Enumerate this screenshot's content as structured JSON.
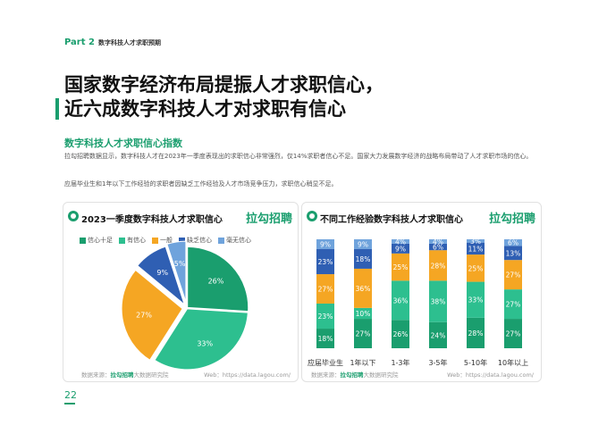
{
  "header": {
    "part": "Part 2",
    "section": "数字科技人才求职预期"
  },
  "headline": {
    "line1": "国家数字经济布局提振人才求职信心，",
    "line2": "近六成数字科技人才对求职有信心"
  },
  "subhead": "数字科技人才求职信心指数",
  "paragraphs": [
    "拉勾招聘数据显示，数字科技人才在2023年一季度表现出的求职信心非常强烈，仅14%求职者信心不足。国家大力发展数字经济的战略布局带动了人才求职市场的信心。",
    "应届毕业生和1年以下工作经验的求职者因缺乏工作经验及人才市场竞争压力，求职信心稍显不足。"
  ],
  "brand": "拉勾招聘",
  "source": {
    "prefix": "数据来源：",
    "brand": "拉勾招聘",
    "suffix": "大数据研究院"
  },
  "web": "Web：https://data.lagou.com/",
  "page_number": "22",
  "colors": {
    "green": "#1a9e6e",
    "teal": "#2dbf8f",
    "orange": "#f5a623",
    "blue": "#2f5fb3",
    "lightblue": "#6fa3dc"
  },
  "legend": [
    {
      "label": "信心十足",
      "color": "#1a9e6e"
    },
    {
      "label": "有信心",
      "color": "#2dbf8f"
    },
    {
      "label": "一般",
      "color": "#f5a623"
    },
    {
      "label": "缺乏信心",
      "color": "#2f5fb3"
    },
    {
      "label": "毫无信心",
      "color": "#6fa3dc"
    }
  ],
  "chart_data": [
    {
      "type": "pie",
      "title": "2023一季度数字科技人才求职信心",
      "categories": [
        "信心十足",
        "有信心",
        "一般",
        "缺乏信心",
        "毫无信心"
      ],
      "values": [
        26,
        33,
        27,
        9,
        5
      ],
      "labels": [
        "26%",
        "33%",
        "27%",
        "9%",
        "5%"
      ]
    },
    {
      "type": "bar",
      "stacked": true,
      "title": "不同工作经验数字科技人才求职信心",
      "categories": [
        "应届毕业生",
        "1年以下",
        "1-3年",
        "3-5年",
        "5-10年",
        "10年以上"
      ],
      "series": [
        {
          "name": "信心十足",
          "values": [
            18,
            27,
            26,
            24,
            28,
            27
          ],
          "labels": [
            "18%",
            "27%",
            "26%",
            "24%",
            "28%",
            "27%"
          ]
        },
        {
          "name": "有信心",
          "values": [
            23,
            10,
            36,
            38,
            33,
            27
          ],
          "labels": [
            "23%",
            "10%",
            "36%",
            "38%",
            "33%",
            "27%"
          ]
        },
        {
          "name": "一般",
          "values": [
            27,
            36,
            25,
            28,
            25,
            27
          ],
          "labels": [
            "27%",
            "36%",
            "25%",
            "28%",
            "25%",
            "27%"
          ]
        },
        {
          "name": "缺乏信心",
          "values": [
            23,
            18,
            9,
            6,
            11,
            13
          ],
          "labels": [
            "23%",
            "18%",
            "9%",
            "6%",
            "11%",
            "13%"
          ]
        },
        {
          "name": "毫无信心",
          "values": [
            9,
            9,
            4,
            4,
            3,
            6
          ],
          "labels": [
            "9%",
            "9%",
            "4%",
            "4%",
            "3%",
            "6%"
          ]
        }
      ]
    }
  ]
}
